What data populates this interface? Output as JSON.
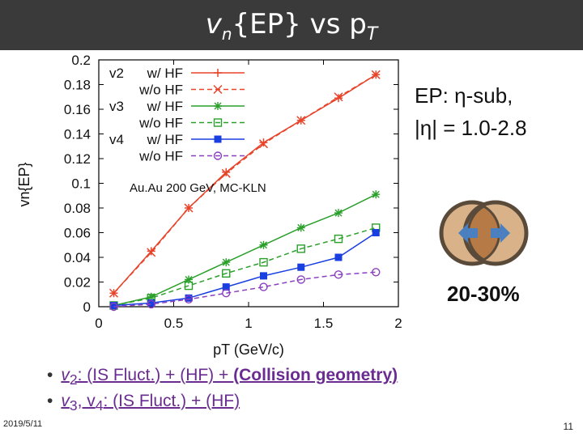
{
  "slide": {
    "title_main": "v",
    "title_sub": "n",
    "title_rest": "{EP} vs p",
    "title_sub2": "T",
    "ep_line1": "EP: η-sub,",
    "ep_line2": "|η| = 1.0-2.8",
    "centrality": "20-30%",
    "bullet1_a": "v",
    "bullet1_sub": "2",
    "bullet1_b": ": (IS Fluct.) + (HF) + ",
    "bullet1_c": "(Collision geometry)",
    "bullet2_a": "v",
    "bullet2_sub1": "3",
    "bullet2_b": ", v",
    "bullet2_sub2": "4",
    "bullet2_c": ": (IS Fluct.) + (HF)",
    "date": "2019/5/11",
    "page": "11"
  },
  "chart_data": {
    "type": "scatter",
    "title": "",
    "xlabel": "pT (GeV/c)",
    "ylabel": "vn{EP}",
    "xlim": [
      0,
      2
    ],
    "ylim": [
      0,
      0.2
    ],
    "xticks": [
      "0",
      "0.5",
      "1",
      "1.5",
      "2"
    ],
    "yticks": [
      "0",
      "0.02",
      "0.04",
      "0.06",
      "0.08",
      "0.1",
      "0.12",
      "0.14",
      "0.16",
      "0.18",
      "0.2"
    ],
    "annotation": "Au.Au 200 GeV, MC-KLN",
    "legend_groups": [
      "v2",
      "v3",
      "v4"
    ],
    "series": [
      {
        "name": "w/ HF",
        "group": "v2",
        "color": "#e8442a",
        "marker": "plus",
        "dash": false,
        "x": [
          0.1,
          0.35,
          0.6,
          0.85,
          1.1,
          1.35,
          1.6,
          1.85
        ],
        "values": [
          0.011,
          0.045,
          0.08,
          0.109,
          0.133,
          0.151,
          0.169,
          0.188
        ]
      },
      {
        "name": "w/o HF",
        "group": "v2",
        "color": "#e8442a",
        "marker": "x",
        "dash": true,
        "x": [
          0.1,
          0.35,
          0.6,
          0.85,
          1.1,
          1.35,
          1.6,
          1.85
        ],
        "values": [
          0.011,
          0.044,
          0.08,
          0.108,
          0.132,
          0.151,
          0.17,
          0.188
        ]
      },
      {
        "name": "w/ HF",
        "group": "v3",
        "color": "#2aa02a",
        "marker": "star",
        "dash": false,
        "x": [
          0.1,
          0.35,
          0.6,
          0.85,
          1.1,
          1.35,
          1.6,
          1.85
        ],
        "values": [
          0.001,
          0.008,
          0.022,
          0.036,
          0.05,
          0.064,
          0.076,
          0.091
        ]
      },
      {
        "name": "w/o HF",
        "group": "v3",
        "color": "#2aa02a",
        "marker": "square-open",
        "dash": true,
        "x": [
          0.1,
          0.35,
          0.6,
          0.85,
          1.1,
          1.35,
          1.6,
          1.85
        ],
        "values": [
          0.001,
          0.007,
          0.017,
          0.027,
          0.036,
          0.047,
          0.055,
          0.064
        ]
      },
      {
        "name": "w/ HF",
        "group": "v4",
        "color": "#1a3fe0",
        "marker": "square-filled",
        "dash": false,
        "x": [
          0.1,
          0.35,
          0.6,
          0.85,
          1.1,
          1.35,
          1.6,
          1.85
        ],
        "values": [
          0.001,
          0.003,
          0.007,
          0.016,
          0.025,
          0.032,
          0.04,
          0.06
        ]
      },
      {
        "name": "w/o HF",
        "group": "v4",
        "color": "#8a3fc0",
        "marker": "circle-open",
        "dash": true,
        "x": [
          0.1,
          0.35,
          0.6,
          0.85,
          1.1,
          1.35,
          1.6,
          1.85
        ],
        "values": [
          0.0,
          0.002,
          0.006,
          0.011,
          0.016,
          0.022,
          0.026,
          0.028
        ]
      }
    ]
  },
  "colors": {
    "title_bar": "#3a3a3a",
    "bullet_text": "#6a2c91",
    "nucleus_outline": "#5a4a3a",
    "nucleus_fill": "#d9b28a",
    "overlap_fill": "#b57a45",
    "arrow": "#4a7fc0"
  }
}
